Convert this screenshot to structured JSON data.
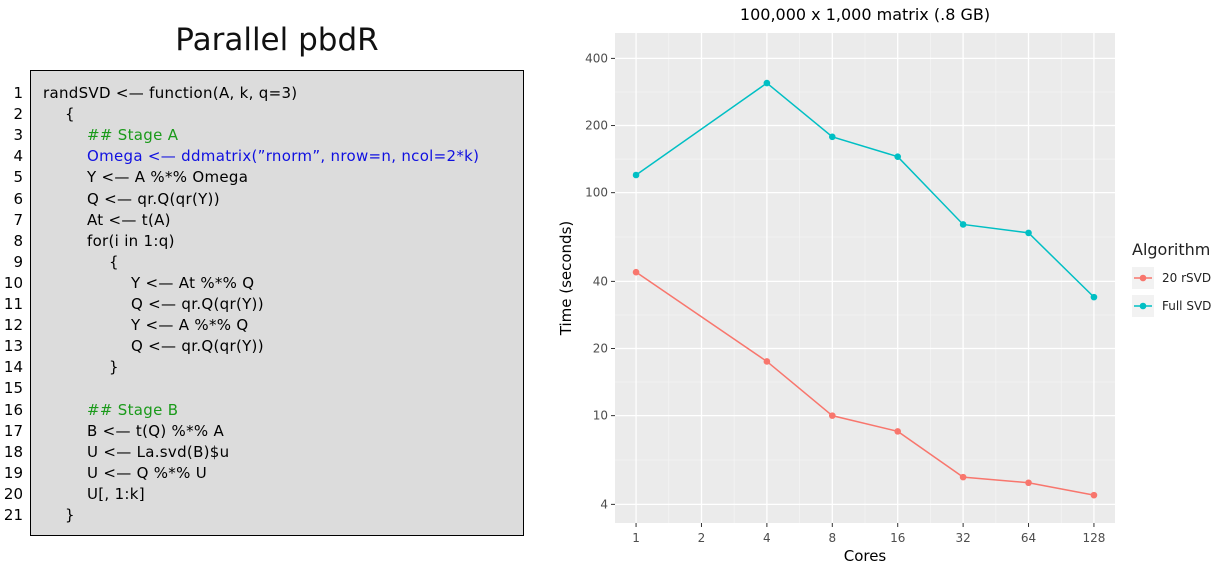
{
  "left_panel": {
    "title": "Parallel pbdR",
    "code_lines": [
      {
        "num": "1",
        "text": "randSVD <— function(A, k, q=3)",
        "indent": 0,
        "style": "normal"
      },
      {
        "num": "2",
        "text": "{",
        "indent": 1,
        "style": "normal"
      },
      {
        "num": "3",
        "text": "## Stage A",
        "indent": 2,
        "style": "comment"
      },
      {
        "num": "4",
        "text": "Omega <— ddmatrix(”rnorm”, nrow=n, ncol=2*k)",
        "indent": 2,
        "style": "highlight"
      },
      {
        "num": "5",
        "text": "Y <— A %*% Omega",
        "indent": 2,
        "style": "normal"
      },
      {
        "num": "6",
        "text": "Q <— qr.Q(qr(Y))",
        "indent": 2,
        "style": "normal"
      },
      {
        "num": "7",
        "text": "At <— t(A)",
        "indent": 2,
        "style": "normal"
      },
      {
        "num": "8",
        "text": "for(i in 1:q)",
        "indent": 2,
        "style": "normal"
      },
      {
        "num": "9",
        "text": "{",
        "indent": 3,
        "style": "normal"
      },
      {
        "num": "10",
        "text": "Y <— At %*% Q",
        "indent": 4,
        "style": "normal"
      },
      {
        "num": "11",
        "text": "Q <— qr.Q(qr(Y))",
        "indent": 4,
        "style": "normal"
      },
      {
        "num": "12",
        "text": "Y <— A %*% Q",
        "indent": 4,
        "style": "normal"
      },
      {
        "num": "13",
        "text": "Q <— qr.Q(qr(Y))",
        "indent": 4,
        "style": "normal"
      },
      {
        "num": "14",
        "text": "}",
        "indent": 3,
        "style": "normal"
      },
      {
        "num": "15",
        "text": "",
        "indent": 0,
        "style": "normal"
      },
      {
        "num": "16",
        "text": "## Stage B",
        "indent": 2,
        "style": "comment"
      },
      {
        "num": "17",
        "text": "B <— t(Q) %*% A",
        "indent": 2,
        "style": "normal"
      },
      {
        "num": "18",
        "text": "U <— La.svd(B)$u",
        "indent": 2,
        "style": "normal"
      },
      {
        "num": "19",
        "text": "U <— Q %*% U",
        "indent": 2,
        "style": "normal"
      },
      {
        "num": "20",
        "text": "U[, 1:k]",
        "indent": 2,
        "style": "normal"
      },
      {
        "num": "21",
        "text": "}",
        "indent": 1,
        "style": "normal"
      }
    ],
    "colors": {
      "comment": "#1a9a1a",
      "highlight": "#1010e0",
      "normal": "#000000"
    }
  },
  "chart_data": {
    "type": "line",
    "title": "100,000 x 1,000 matrix (.8 GB)",
    "xlabel": "Cores",
    "ylabel": "Time (seconds)",
    "x_scale": "log2",
    "y_scale": "log10",
    "x_ticks": [
      1,
      2,
      4,
      8,
      16,
      32,
      64,
      128
    ],
    "y_ticks": [
      4,
      10,
      20,
      40,
      100,
      200,
      400
    ],
    "xlim": [
      0.8,
      160
    ],
    "ylim": [
      3.3,
      520
    ],
    "grid": true,
    "panel_background": "#ebebeb",
    "legend": {
      "title": "Algorithm",
      "position": "right"
    },
    "series": [
      {
        "name": "20 rSVD",
        "color": "#f8766d",
        "x": [
          1,
          4,
          8,
          16,
          32,
          64,
          128
        ],
        "values": [
          44,
          17.5,
          10,
          8.5,
          5.3,
          5.0,
          4.4
        ]
      },
      {
        "name": "Full SVD",
        "color": "#00bfc4",
        "x": [
          1,
          4,
          8,
          16,
          32,
          64,
          128
        ],
        "values": [
          120,
          310,
          178,
          145,
          72,
          66,
          34
        ]
      }
    ]
  }
}
